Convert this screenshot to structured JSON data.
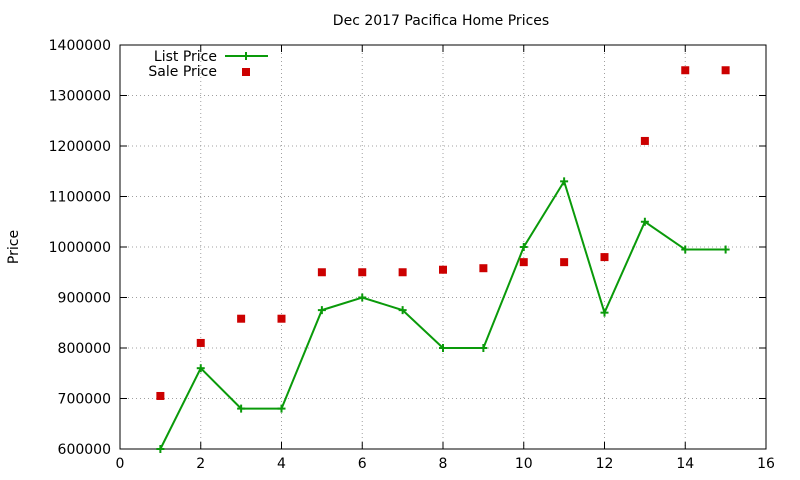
{
  "chart_data": {
    "type": "line",
    "title": "Dec 2017 Pacifica Home Prices",
    "xlabel": "",
    "ylabel": "Price",
    "xlim": [
      0,
      16
    ],
    "ylim": [
      600000,
      1400000
    ],
    "xticks": [
      0,
      2,
      4,
      6,
      8,
      10,
      12,
      14,
      16
    ],
    "yticks": [
      600000,
      700000,
      800000,
      900000,
      1000000,
      1100000,
      1200000,
      1300000,
      1400000
    ],
    "grid": true,
    "legend_position": "top-left",
    "series": [
      {
        "name": "List Price",
        "style": "line-with-plus-markers",
        "color": "#0a9a0a",
        "x": [
          1,
          2,
          3,
          4,
          5,
          6,
          7,
          8,
          9,
          10,
          11,
          12,
          13,
          14,
          15
        ],
        "y": [
          600000,
          760000,
          680000,
          680000,
          875000,
          900000,
          875000,
          800000,
          800000,
          1000000,
          1130000,
          870000,
          1050000,
          995000,
          995000
        ]
      },
      {
        "name": "Sale Price",
        "style": "square-markers",
        "color": "#cc0000",
        "x": [
          1,
          2,
          3,
          4,
          5,
          6,
          7,
          8,
          9,
          10,
          11,
          12,
          13,
          14,
          15
        ],
        "y": [
          705000,
          810000,
          858000,
          858000,
          950000,
          950000,
          950000,
          955000,
          958000,
          970000,
          970000,
          980000,
          1210000,
          1350000,
          1350000
        ]
      }
    ]
  }
}
